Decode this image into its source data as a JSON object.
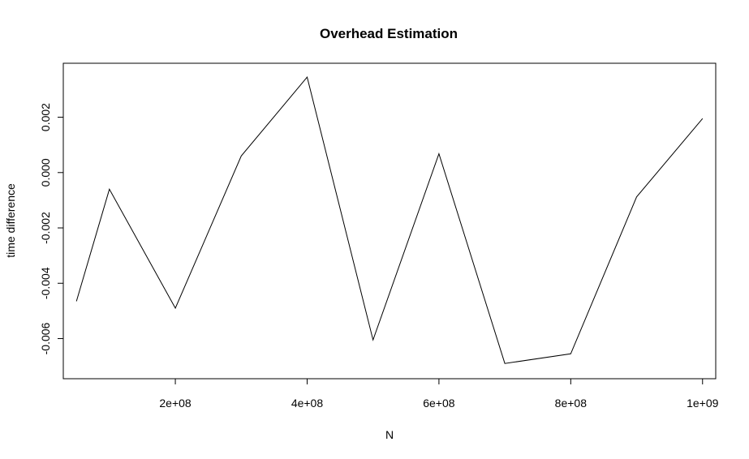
{
  "chart_data": {
    "type": "line",
    "title": "Overhead Estimation",
    "xlabel": "N",
    "ylabel": "time difference",
    "x": [
      50000000,
      100000000,
      200000000,
      300000000,
      400000000,
      500000000,
      600000000,
      700000000,
      800000000,
      900000000,
      1000000000
    ],
    "series": [
      {
        "values": [
          -0.00465,
          -0.0006,
          -0.0049,
          0.0006,
          0.00345,
          -0.00605,
          0.00068,
          -0.0069,
          -0.00655,
          -0.00088,
          0.00195
        ]
      }
    ],
    "xlim": [
      30000000,
      1020000000
    ],
    "ylim": [
      -0.00745,
      0.00395
    ],
    "x_ticks": [
      200000000,
      400000000,
      600000000,
      800000000,
      1000000000
    ],
    "x_tick_labels": [
      "2e+08",
      "4e+08",
      "6e+08",
      "8e+08",
      "1e+09"
    ],
    "y_ticks": [
      -0.006,
      -0.004,
      -0.002,
      0.0,
      0.002
    ],
    "y_tick_labels": [
      "-0.006",
      "-0.004",
      "-0.002",
      "0.000",
      "0.002"
    ],
    "grid": false,
    "series_color": "#000000"
  }
}
